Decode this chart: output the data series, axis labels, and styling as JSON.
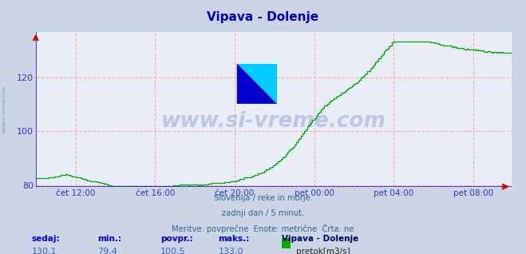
{
  "title": "Vipava - Dolenje",
  "bg_color": "#ccd5e5",
  "plot_bg_color": "#e8edf8",
  "line_color": "#00aa00",
  "grid_color": "#ffaaaa",
  "axis_color": "#3333cc",
  "ylabel_color": "#3333cc",
  "xlabel_color": "#3333cc",
  "title_color": "#0000bb",
  "ylim": [
    79.4,
    137
  ],
  "yticks": [
    80,
    100,
    120
  ],
  "xtick_labels": [
    "čet 12:00",
    "čet 16:00",
    "čet 20:00",
    "pet 00:00",
    "pet 04:00",
    "pet 08:00"
  ],
  "subtitle_lines": [
    "Slovenija / reke in morje.",
    "zadnji dan / 5 minut.",
    "Meritve: povrpečne  Enote: metrične  Črta: ne"
  ],
  "subtitle_lines_correct": [
    "Slovenija / reke in morje.",
    "zadnji dan / 5 minut.",
    "Meritve: povprečne  Enote: metrične  Črta: ne"
  ],
  "stats_labels": [
    "sedaj:",
    "min.:",
    "povpr.:",
    "maks.:"
  ],
  "stats_values": [
    "130,1",
    "79,4",
    "100,5",
    "133,0"
  ],
  "legend_label": "pretok[m3/s]",
  "legend_station": "Vipava - Dolenje",
  "watermark": "www.si-vreme.com",
  "watermark_color": "#2244aa",
  "watermark_alpha": 0.22,
  "left_label": "www.si-vreme.com",
  "n_points": 288
}
